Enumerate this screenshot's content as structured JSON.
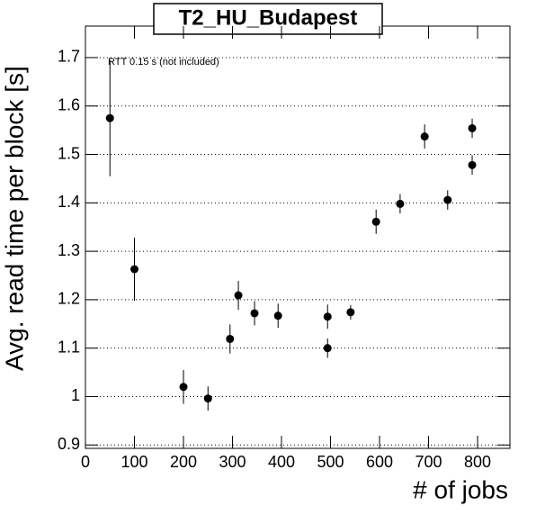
{
  "chart_data": {
    "type": "scatter",
    "title": "T2_HU_Budapest",
    "annotation": "RTT 0.15 s (not included)",
    "x_label": "# of jobs",
    "y_label": "Avg. read time per block [s]",
    "x": [
      50,
      100,
      200,
      250,
      295,
      312,
      345,
      393,
      494,
      494,
      541,
      593,
      642,
      692,
      739,
      789,
      789
    ],
    "values": [
      1.575,
      1.263,
      1.02,
      0.996,
      1.119,
      1.209,
      1.172,
      1.167,
      1.165,
      1.1,
      1.174,
      1.361,
      1.398,
      1.537,
      1.406,
      1.554,
      1.478
    ],
    "errors": [
      0.12,
      0.065,
      0.035,
      0.025,
      0.03,
      0.03,
      0.025,
      0.025,
      0.025,
      0.02,
      0.015,
      0.025,
      0.02,
      0.025,
      0.02,
      0.02,
      0.02
    ],
    "color": "#000000",
    "xlim": [
      0,
      866
    ],
    "xticks": [
      0,
      100,
      200,
      300,
      400,
      500,
      600,
      700,
      800
    ],
    "ylim": [
      0.893,
      1.765
    ],
    "yticks": [
      0.9,
      1,
      1.1,
      1.2,
      1.3,
      1.4,
      1.5,
      1.6,
      1.7
    ],
    "grid": true
  }
}
